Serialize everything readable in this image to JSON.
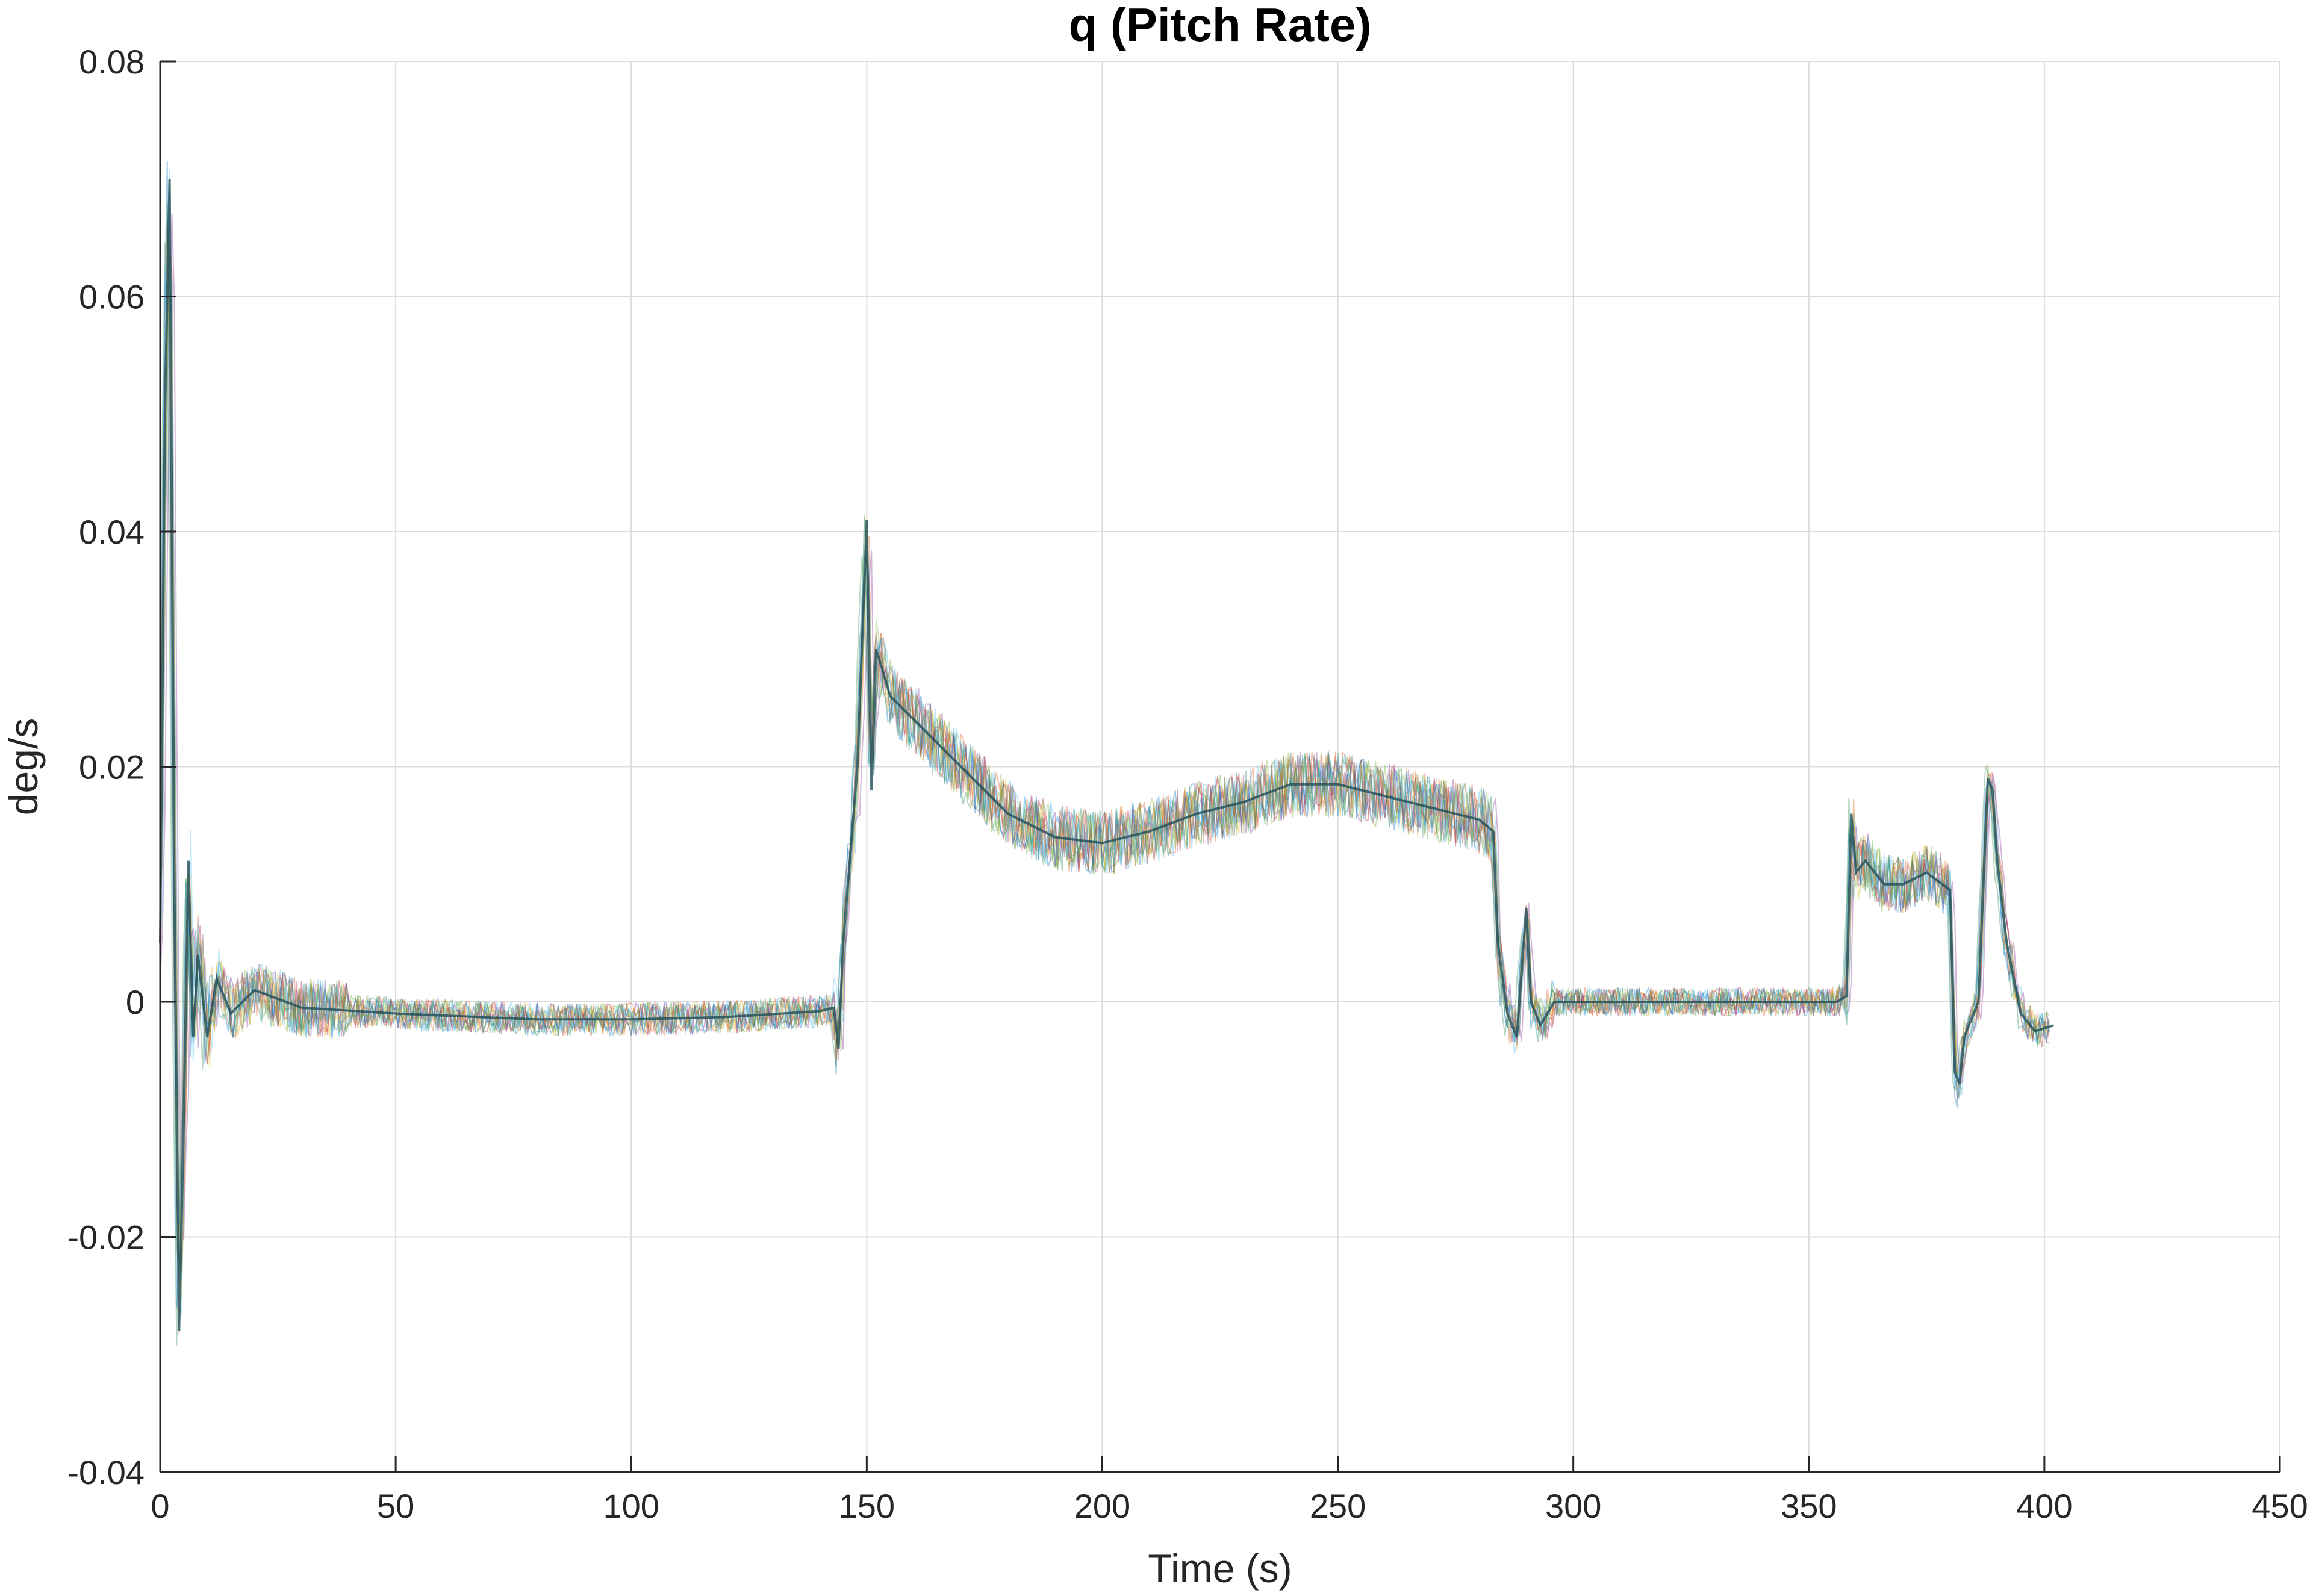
{
  "chart_data": {
    "type": "line",
    "title": "q (Pitch Rate)",
    "xlabel": "Time (s)",
    "ylabel": "deg/s",
    "xlim": [
      0,
      450
    ],
    "ylim": [
      -0.04,
      0.08
    ],
    "x_ticks": [
      0,
      50,
      100,
      150,
      200,
      250,
      300,
      350,
      400,
      450
    ],
    "x_tick_labels": [
      "0",
      "50",
      "100",
      "150",
      "200",
      "250",
      "300",
      "350",
      "400",
      "450"
    ],
    "y_ticks": [
      -0.04,
      -0.02,
      0,
      0.02,
      0.04,
      0.06,
      0.08
    ],
    "y_tick_labels": [
      "-0.04",
      "-0.02",
      "0",
      "0.02",
      "0.04",
      "0.06",
      "0.08"
    ],
    "grid": true,
    "legend": "none",
    "series_colors": [
      "#0072BD",
      "#D95319",
      "#77AC30",
      "#4DBEEE",
      "#A2142F",
      "#EDB120",
      "#7E2F8E",
      "#2E8B57"
    ],
    "mean_trace": {
      "x": [
        0,
        1,
        2,
        3,
        4,
        5,
        6,
        7,
        8,
        10,
        12,
        15,
        20,
        30,
        50,
        80,
        100,
        120,
        140,
        143,
        144,
        145,
        148,
        150,
        151,
        152,
        155,
        160,
        170,
        180,
        190,
        200,
        210,
        220,
        230,
        240,
        250,
        260,
        270,
        280,
        283,
        284,
        286,
        288,
        290,
        291,
        293,
        296,
        300,
        320,
        340,
        356,
        358,
        359,
        360,
        362,
        366,
        370,
        375,
        380,
        381,
        382,
        383,
        384,
        386,
        388,
        389,
        390,
        392,
        395,
        398,
        402
      ],
      "y": [
        0.005,
        0.05,
        0.07,
        0.01,
        -0.028,
        -0.01,
        0.012,
        -0.003,
        0.004,
        -0.003,
        0.002,
        -0.001,
        0.001,
        -0.0005,
        -0.001,
        -0.0015,
        -0.0015,
        -0.0013,
        -0.0008,
        -0.0005,
        -0.004,
        0.005,
        0.02,
        0.041,
        0.018,
        0.03,
        0.026,
        0.024,
        0.02,
        0.016,
        0.014,
        0.0135,
        0.0145,
        0.016,
        0.017,
        0.0185,
        0.0185,
        0.0175,
        0.0165,
        0.0155,
        0.0145,
        0.005,
        -0.001,
        -0.003,
        0.008,
        0.0,
        -0.002,
        0.0,
        0.0,
        0.0,
        0.0,
        0.0,
        0.0005,
        0.016,
        0.011,
        0.012,
        0.01,
        0.01,
        0.011,
        0.0095,
        -0.006,
        -0.007,
        -0.003,
        -0.002,
        0.0,
        0.019,
        0.018,
        0.012,
        0.005,
        -0.001,
        -0.0025,
        -0.002
      ]
    },
    "num_monte_carlo_runs_shown": 12
  }
}
